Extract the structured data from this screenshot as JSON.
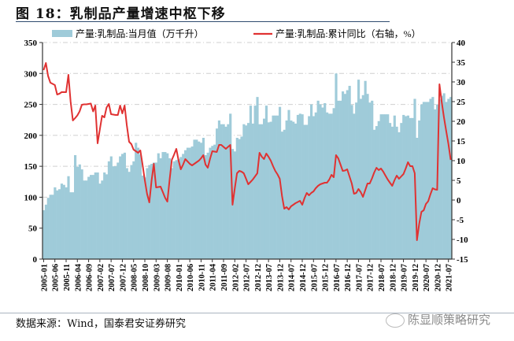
{
  "title": "图 18：乳制品产量增速中枢下移",
  "source": "数据来源：Wind，国泰君安证券研究",
  "watermark": "陈显顺策略研究",
  "colors": {
    "bar": "#9fcbd9",
    "line": "#e03232",
    "grid": "#cfcfcf",
    "title_rule": "#2f4b6e"
  },
  "chart_data": {
    "type": "bar+line",
    "legend_placement": "top",
    "grid": true,
    "y_left": {
      "range": [
        0,
        350
      ],
      "ticks": [
        0,
        50,
        100,
        150,
        200,
        250,
        300,
        350
      ]
    },
    "y_right": {
      "range": [
        -15,
        40
      ],
      "ticks": [
        -15,
        -10,
        -5,
        0,
        5,
        10,
        15,
        20,
        25,
        30,
        35,
        40
      ]
    },
    "x_tick_labels": [
      "2005-01",
      "2005-06",
      "2005-11",
      "2006-04",
      "2006-09",
      "2007-02",
      "2007-07",
      "2007-12",
      "2008-05",
      "2008-10",
      "2009-03",
      "2009-08",
      "2010-01",
      "2010-06",
      "2010-11",
      "2011-04",
      "2011-09",
      "2012-02",
      "2012-07",
      "2012-12",
      "2013-07",
      "2013-12",
      "2014-07",
      "2014-12",
      "2015-07",
      "2015-12",
      "2016-07",
      "2016-12",
      "2017-07",
      "2017-12",
      "2018-07",
      "2018-12",
      "2019-07",
      "2019-12",
      "2020-07",
      "2020-12",
      "2021-07"
    ],
    "categories": [
      "2005-01",
      "2005-02",
      "2005-03",
      "2005-04",
      "2005-05",
      "2005-06",
      "2005-07",
      "2005-08",
      "2005-09",
      "2005-10",
      "2005-11",
      "2005-12",
      "2006-01",
      "2006-02",
      "2006-03",
      "2006-04",
      "2006-05",
      "2006-06",
      "2006-07",
      "2006-08",
      "2006-09",
      "2006-10",
      "2006-11",
      "2006-12",
      "2007-01",
      "2007-02",
      "2007-03",
      "2007-04",
      "2007-05",
      "2007-06",
      "2007-07",
      "2007-08",
      "2007-09",
      "2007-10",
      "2007-11",
      "2007-12",
      "2008-01",
      "2008-02",
      "2008-03",
      "2008-04",
      "2008-05",
      "2008-06",
      "2008-07",
      "2008-08",
      "2008-09",
      "2008-10",
      "2008-11",
      "2008-12",
      "2009-01",
      "2009-02",
      "2009-03",
      "2009-04",
      "2009-05",
      "2009-06",
      "2009-07",
      "2009-08",
      "2009-09",
      "2009-10",
      "2009-11",
      "2009-12",
      "2010-01",
      "2010-02",
      "2010-03",
      "2010-04",
      "2010-05",
      "2010-06",
      "2010-07",
      "2010-08",
      "2010-09",
      "2010-10",
      "2010-11",
      "2010-12",
      "2011-01",
      "2011-02",
      "2011-03",
      "2011-04",
      "2011-05",
      "2011-06",
      "2011-07",
      "2011-08",
      "2011-09",
      "2011-10",
      "2011-11",
      "2011-12",
      "2012-01",
      "2012-02",
      "2012-03",
      "2012-04",
      "2012-05",
      "2012-06",
      "2012-07",
      "2012-08",
      "2012-09",
      "2012-10",
      "2012-11",
      "2012-12",
      "2013-03",
      "2013-04",
      "2013-05",
      "2013-06",
      "2013-07",
      "2013-08",
      "2013-09",
      "2013-10",
      "2013-11",
      "2013-12",
      "2014-03",
      "2014-04",
      "2014-05",
      "2014-06",
      "2014-07",
      "2014-08",
      "2014-09",
      "2014-10",
      "2014-11",
      "2014-12",
      "2015-03",
      "2015-04",
      "2015-05",
      "2015-06",
      "2015-07",
      "2015-08",
      "2015-09",
      "2015-10",
      "2015-11",
      "2015-12",
      "2016-03",
      "2016-04",
      "2016-05",
      "2016-06",
      "2016-07",
      "2016-08",
      "2016-09",
      "2016-10",
      "2016-11",
      "2016-12",
      "2017-03",
      "2017-04",
      "2017-05",
      "2017-06",
      "2017-07",
      "2017-08",
      "2017-09",
      "2017-10",
      "2017-11",
      "2017-12",
      "2018-03",
      "2018-04",
      "2018-05",
      "2018-06",
      "2018-07",
      "2018-08",
      "2018-09",
      "2018-10",
      "2018-11",
      "2018-12",
      "2019-03",
      "2019-04",
      "2019-05",
      "2019-06",
      "2019-07",
      "2019-08",
      "2019-09",
      "2019-10",
      "2019-11",
      "2019-12",
      "2020-03",
      "2020-04",
      "2020-05",
      "2020-06",
      "2020-07",
      "2020-08",
      "2020-09",
      "2020-10",
      "2020-11",
      "2020-12",
      "2021-03",
      "2021-04",
      "2021-05",
      "2021-06",
      "2021-07",
      "2021-08"
    ],
    "series": [
      {
        "name": "产量:乳制品:当月值（万千升）",
        "type": "bar",
        "axis": "left",
        "values": [
          79,
          88,
          99,
          104,
          104,
          116,
          111,
          113,
          122,
          120,
          116,
          134,
          108,
          108,
          168,
          149,
          153,
          145,
          127,
          127,
          133,
          136,
          136,
          140,
          140,
          122,
          127,
          140,
          137,
          158,
          166,
          150,
          150,
          156,
          166,
          170,
          172,
          147,
          141,
          152,
          158,
          188,
          180,
          169,
          135,
          132,
          147,
          152,
          154,
          156,
          156,
          171,
          163,
          173,
          173,
          171,
          163,
          147,
          158,
          160,
          162,
          165,
          170,
          176,
          180,
          180,
          182,
          193,
          193,
          190,
          188,
          196,
          168,
          172,
          180,
          183,
          185,
          211,
          224,
          218,
          218,
          214,
          218,
          235,
          178,
          174,
          196,
          194,
          198,
          218,
          216,
          220,
          248,
          219,
          248,
          262,
          218,
          218,
          227,
          248,
          221,
          222,
          232,
          232,
          232,
          246,
          206,
          209,
          224,
          241,
          224,
          222,
          219,
          233,
          235,
          234,
          217,
          217,
          231,
          250,
          231,
          237,
          256,
          250,
          245,
          252,
          237,
          235,
          235,
          244,
          300,
          256,
          256,
          271,
          267,
          273,
          280,
          249,
          235,
          253,
          290,
          259,
          265,
          288,
          267,
          253,
          256,
          209,
          215,
          223,
          234,
          234,
          234,
          234,
          220,
          214,
          232,
          214,
          205,
          220,
          233,
          231,
          232,
          228,
          228,
          259,
          196,
          224,
          250,
          254,
          254,
          254,
          259,
          262,
          242,
          250,
          258,
          264,
          268,
          254,
          259,
          262
        ]
      },
      {
        "name": "产量:乳制品:累计同比（右轴，%）",
        "type": "line",
        "axis": "right",
        "values": [
          33,
          34.8,
          31.5,
          29.8,
          29.5,
          29.2,
          26.8,
          27,
          27.4,
          27.4,
          27.4,
          31.8,
          25,
          20.2,
          20.8,
          21.5,
          22.5,
          24.2,
          24.3,
          24.3,
          24.4,
          24.5,
          22.5,
          24,
          14.4,
          18,
          21.4,
          21,
          23.5,
          24.4,
          21.8,
          21.7,
          21.6,
          21.6,
          24,
          22,
          24,
          19,
          14.8,
          14.2,
          12.8,
          12.4,
          12,
          12.6,
          9,
          5,
          1.5,
          -0.6,
          5,
          9.2,
          3.2,
          3.3,
          3.4,
          2,
          0.6,
          -0.4,
          5,
          10.2,
          11.5,
          13,
          10,
          7.8,
          9,
          10.4,
          9.8,
          9.2,
          8.8,
          9.2,
          9.6,
          10,
          10.6,
          11.4,
          9,
          8.2,
          10.5,
          12.4,
          12.3,
          12.2,
          14,
          14,
          13.5,
          13,
          13.5,
          14,
          -1.2,
          3,
          6.8,
          7.4,
          7.2,
          6.8,
          5.4,
          4,
          4.6,
          5.2,
          6,
          6.8,
          12,
          11,
          10.4,
          11.8,
          11,
          10,
          8.6,
          7.4,
          6.5,
          5.4,
          1,
          -2.2,
          -1.8,
          -2.4,
          -1.6,
          -1.2,
          -0.8,
          -0.5,
          -0.2,
          -1.2,
          0.5,
          1.8,
          1.2,
          1.8,
          2.2,
          3,
          3.6,
          4,
          4.2,
          4.4,
          4.4,
          5.2,
          6.4,
          5.8,
          11.4,
          10.6,
          9,
          7.4,
          7.5,
          7.8,
          6,
          4.2,
          1.6,
          1.8,
          2.8,
          2,
          0.8,
          2.5,
          4.2,
          4.2,
          5.5,
          7,
          8.2,
          7.6,
          8,
          7.2,
          6.2,
          5.2,
          4.4,
          3.6,
          5,
          6.2,
          5.4,
          6,
          6.6,
          8,
          9.6,
          8.6,
          8.6,
          6.8,
          -10.2,
          -6,
          -3,
          -2.6,
          -1,
          -0.3,
          1.5,
          3,
          2.7,
          2.6,
          29.4,
          25,
          21,
          17.5,
          14.2,
          10.2
        ]
      }
    ]
  }
}
